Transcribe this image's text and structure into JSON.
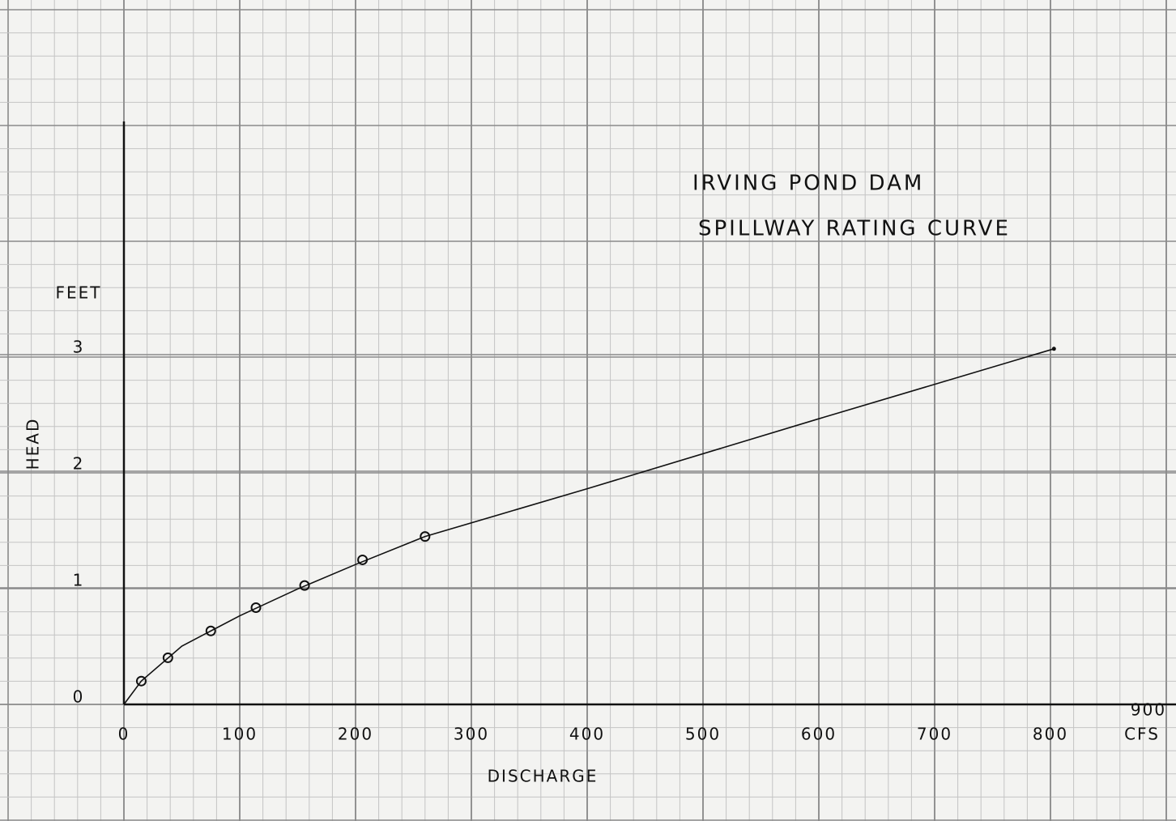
{
  "chart_data": {
    "type": "scatter",
    "title": [
      "IRVING POND DAM",
      "SPILLWAY RATING CURVE"
    ],
    "x_label": "DISCHARGE",
    "x_unit": "CFS",
    "y_label": "HEAD",
    "y_unit": "FEET",
    "points": {
      "x": [
        15,
        38,
        75,
        114,
        156,
        206,
        260
      ],
      "values": [
        0.2,
        0.4,
        0.63,
        0.83,
        1.02,
        1.24,
        1.44
      ]
    },
    "curve": {
      "x": [
        0,
        15,
        50,
        100,
        150,
        200,
        260,
        400,
        600,
        803
      ],
      "values": [
        0,
        0.2,
        0.5,
        0.76,
        0.99,
        1.2,
        1.44,
        1.85,
        2.45,
        3.05
      ]
    },
    "color": "#111111",
    "xlim": [
      0,
      900
    ],
    "xticks": [
      0,
      100,
      200,
      300,
      400,
      500,
      600,
      700,
      800,
      900
    ],
    "ylim": [
      0,
      5
    ],
    "yticks": [
      0,
      1,
      2,
      3
    ],
    "grid": true
  }
}
